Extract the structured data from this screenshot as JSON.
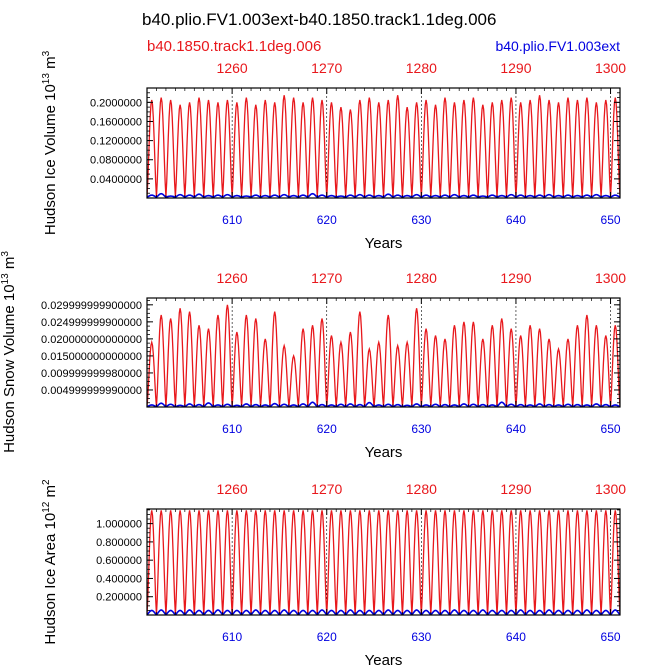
{
  "title": "b40.plio.FV1.003ext-b40.1850.track1.1deg.006",
  "legend": {
    "red_label": "b40.1850.track1.1deg.006",
    "blue_label": "b40.plio.FV1.003ext"
  },
  "colors": {
    "red": "#e8181c",
    "blue": "#0000e0",
    "axis": "#000000"
  },
  "chart_data": [
    {
      "type": "line",
      "name": "hudson-ice-volume",
      "ylabel": "Hudson Ice Volume 10^13 m^3",
      "ylabel_main": "Hudson Ice Volume 10",
      "ylabel_exp": "13",
      "ylabel_unit": " m",
      "ylabel_unit_exp": "3",
      "xlabel": "Years",
      "ylim": [
        0,
        0.23
      ],
      "yticks": [
        0.04,
        0.08,
        0.12,
        0.16,
        0.2
      ],
      "ytick_labels": [
        "0.0400000",
        "0.0800000",
        "0.1200000",
        "0.1600000",
        "0.2000000"
      ],
      "x_bottom": {
        "range": [
          601,
          651
        ],
        "ticks": [
          610,
          620,
          630,
          640,
          650
        ],
        "labels": [
          "610",
          "620",
          "630",
          "640",
          "650"
        ]
      },
      "x_top": {
        "range": [
          1251,
          1301
        ],
        "ticks": [
          1260,
          1270,
          1280,
          1290,
          1300
        ],
        "labels": [
          "1260",
          "1270",
          "1280",
          "1290",
          "1300"
        ]
      },
      "series": [
        {
          "name": "b40.1850.track1.1deg.006",
          "color": "#e8181c",
          "min": 0.003,
          "annual_peaks": [
            0.205,
            0.21,
            0.205,
            0.195,
            0.2,
            0.21,
            0.205,
            0.2,
            0.205,
            0.2,
            0.21,
            0.195,
            0.205,
            0.2,
            0.215,
            0.21,
            0.2,
            0.21,
            0.205,
            0.2,
            0.19,
            0.185,
            0.205,
            0.21,
            0.2,
            0.205,
            0.215,
            0.19,
            0.2,
            0.205,
            0.195,
            0.21,
            0.2,
            0.205,
            0.21,
            0.195,
            0.2,
            0.205,
            0.21,
            0.2,
            0.205,
            0.215,
            0.205,
            0.2,
            0.21,
            0.205,
            0.21,
            0.2,
            0.205,
            0.21
          ]
        },
        {
          "name": "b40.plio.FV1.003ext",
          "color": "#0000e0",
          "min": 0.002,
          "annual_peaks": [
            0.006,
            0.009,
            0.004,
            0.007,
            0.006,
            0.008,
            0.005,
            0.006,
            0.007,
            0.005,
            0.004,
            0.006,
            0.005,
            0.006,
            0.007,
            0.005,
            0.006,
            0.009,
            0.006,
            0.005,
            0.004,
            0.006,
            0.007,
            0.006,
            0.005,
            0.008,
            0.006,
            0.005,
            0.007,
            0.006,
            0.005,
            0.006,
            0.007,
            0.005,
            0.006,
            0.004,
            0.006,
            0.005,
            0.007,
            0.006,
            0.005,
            0.006,
            0.007,
            0.005,
            0.006,
            0.005,
            0.006,
            0.007,
            0.005,
            0.006
          ]
        }
      ]
    },
    {
      "type": "line",
      "name": "hudson-snow-volume",
      "ylabel": "Hudson Snow Volume 10^13 m^3",
      "ylabel_main": "Hudson Snow Volume 10",
      "ylabel_exp": "13",
      "ylabel_unit": " m",
      "ylabel_unit_exp": "3",
      "xlabel": "Years",
      "ylim": [
        0,
        0.032
      ],
      "yticks": [
        0.005,
        0.01,
        0.015,
        0.02,
        0.025,
        0.03
      ],
      "ytick_labels": [
        "0.004999999990000",
        "0.009999999980000",
        "0.015000000000000",
        "0.020000000000000",
        "0.024999999900000",
        "0.029999999900000"
      ],
      "x_bottom": {
        "range": [
          601,
          651
        ],
        "ticks": [
          610,
          620,
          630,
          640,
          650
        ],
        "labels": [
          "610",
          "620",
          "630",
          "640",
          "650"
        ]
      },
      "x_top": {
        "range": [
          1251,
          1301
        ],
        "ticks": [
          1260,
          1270,
          1280,
          1290,
          1300
        ],
        "labels": [
          "1260",
          "1270",
          "1280",
          "1290",
          "1300"
        ]
      },
      "series": [
        {
          "name": "b40.1850.track1.1deg.006",
          "color": "#e8181c",
          "min": 0.0002,
          "annual_peaks": [
            0.019,
            0.027,
            0.026,
            0.029,
            0.028,
            0.024,
            0.023,
            0.027,
            0.03,
            0.022,
            0.027,
            0.026,
            0.02,
            0.028,
            0.018,
            0.015,
            0.023,
            0.024,
            0.026,
            0.021,
            0.019,
            0.022,
            0.028,
            0.017,
            0.019,
            0.027,
            0.018,
            0.019,
            0.029,
            0.023,
            0.021,
            0.02,
            0.024,
            0.025,
            0.025,
            0.02,
            0.024,
            0.026,
            0.023,
            0.021,
            0.024,
            0.023,
            0.02,
            0.017,
            0.02,
            0.024,
            0.027,
            0.024,
            0.021,
            0.024
          ]
        },
        {
          "name": "b40.plio.FV1.003ext",
          "color": "#0000e0",
          "min": 0.0001,
          "annual_peaks": [
            0.0006,
            0.0011,
            0.0008,
            0.0005,
            0.0009,
            0.0007,
            0.0012,
            0.0006,
            0.0008,
            0.0005,
            0.0009,
            0.0007,
            0.0006,
            0.001,
            0.0008,
            0.0006,
            0.0009,
            0.0014,
            0.0007,
            0.0006,
            0.0008,
            0.0009,
            0.0007,
            0.0013,
            0.0006,
            0.0008,
            0.0007,
            0.0005,
            0.0009,
            0.0006,
            0.0008,
            0.0007,
            0.0006,
            0.0009,
            0.0008,
            0.0007,
            0.0006,
            0.0014,
            0.0008,
            0.0007,
            0.0006,
            0.0009,
            0.0007,
            0.0006,
            0.0008,
            0.0007,
            0.0006,
            0.0009,
            0.0007,
            0.0006
          ]
        }
      ]
    },
    {
      "type": "line",
      "name": "hudson-ice-area",
      "ylabel": "Hudson Ice Area 10^12 m^2",
      "ylabel_main": "Hudson Ice Area 10",
      "ylabel_exp": "12",
      "ylabel_unit": " m",
      "ylabel_unit_exp": "2",
      "xlabel": "Years",
      "ylim": [
        0,
        1.16
      ],
      "yticks": [
        0.2,
        0.4,
        0.6,
        0.8,
        1.0
      ],
      "ytick_labels": [
        "0.200000",
        "0.400000",
        "0.600000",
        "0.800000",
        "1.000000"
      ],
      "x_bottom": {
        "range": [
          601,
          651
        ],
        "ticks": [
          610,
          620,
          630,
          640,
          650
        ],
        "labels": [
          "610",
          "620",
          "630",
          "640",
          "650"
        ]
      },
      "x_top": {
        "range": [
          1251,
          1301
        ],
        "ticks": [
          1260,
          1270,
          1280,
          1290,
          1300
        ],
        "labels": [
          "1260",
          "1270",
          "1280",
          "1290",
          "1300"
        ]
      },
      "series": [
        {
          "name": "b40.1850.track1.1deg.006",
          "color": "#e8181c",
          "min": 0.005,
          "annual_peaks": [
            1.145,
            1.145,
            1.145,
            1.145,
            1.145,
            1.145,
            1.145,
            1.145,
            1.145,
            1.145,
            1.145,
            1.145,
            1.145,
            1.145,
            1.145,
            1.145,
            1.145,
            1.145,
            1.145,
            1.145,
            1.145,
            1.145,
            1.145,
            1.145,
            1.145,
            1.145,
            1.145,
            1.145,
            1.145,
            1.145,
            1.145,
            1.145,
            1.145,
            1.145,
            1.145,
            1.145,
            1.145,
            1.145,
            1.145,
            1.145,
            1.145,
            1.145,
            1.145,
            1.145,
            1.145,
            1.145,
            1.145,
            1.145,
            1.145,
            1.145
          ]
        },
        {
          "name": "b40.plio.FV1.003ext",
          "color": "#0000e0",
          "min": 0.005,
          "annual_peaks": [
            0.05,
            0.055,
            0.05,
            0.05,
            0.055,
            0.05,
            0.05,
            0.055,
            0.05,
            0.05,
            0.05,
            0.055,
            0.05,
            0.05,
            0.055,
            0.05,
            0.05,
            0.05,
            0.055,
            0.05,
            0.05,
            0.055,
            0.05,
            0.05,
            0.05,
            0.055,
            0.05,
            0.05,
            0.055,
            0.05,
            0.05,
            0.05,
            0.055,
            0.05,
            0.05,
            0.055,
            0.05,
            0.05,
            0.05,
            0.055,
            0.05,
            0.05,
            0.055,
            0.05,
            0.05,
            0.05,
            0.055,
            0.05,
            0.05,
            0.055
          ]
        }
      ]
    }
  ]
}
